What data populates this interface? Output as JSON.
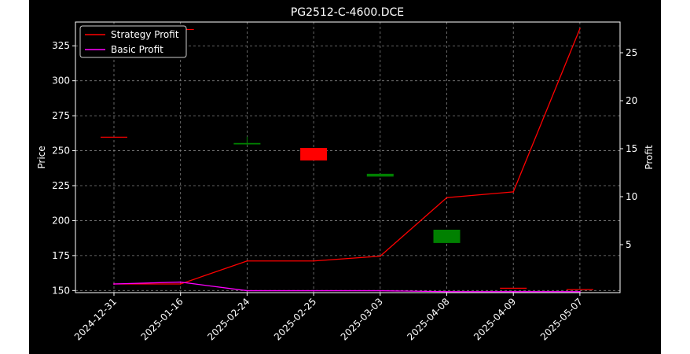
{
  "chart_data": {
    "type": "candlestick-line",
    "title": "PG2512-C-4600.DCE",
    "categories": [
      "2024-12-31",
      "2025-01-16",
      "2025-02-24",
      "2025-02-25",
      "2025-03-03",
      "2025-04-08",
      "2025-04-09",
      "2025-05-07"
    ],
    "price_axis": {
      "label": "Price",
      "ylim": [
        148.5,
        342
      ],
      "ticks": [
        150,
        175,
        200,
        225,
        250,
        275,
        300,
        325
      ],
      "side": "left"
    },
    "profit_axis": {
      "label": "Profit",
      "ylim": [
        0,
        28.2
      ],
      "ticks": [
        5,
        10,
        15,
        20,
        25
      ],
      "side": "right"
    },
    "candles": [
      {
        "date": "2024-12-31",
        "open": 260,
        "close": 260,
        "high": 260,
        "low": 260
      },
      {
        "date": "2025-01-16",
        "open": 337,
        "close": 337,
        "high": 337,
        "low": 337
      },
      {
        "date": "2025-02-24",
        "open": 254.5,
        "close": 255.5,
        "high": 260,
        "low": 254
      },
      {
        "date": "2025-02-25",
        "open": 252,
        "close": 243,
        "high": 252,
        "low": 243
      },
      {
        "date": "2025-03-03",
        "open": 231.5,
        "close": 233.5,
        "high": 233.5,
        "low": 231.5
      },
      {
        "date": "2025-04-08",
        "open": 184,
        "close": 193.5,
        "high": 193.5,
        "low": 184
      },
      {
        "date": "2025-04-09",
        "open": 152,
        "close": 152,
        "high": 152,
        "low": 152
      },
      {
        "date": "2025-05-07",
        "open": 151,
        "close": 151,
        "high": 151,
        "low": 151
      }
    ],
    "candle_colors": {
      "up": "#008000",
      "down": "#ff0000",
      "doji": "#ff0000"
    },
    "series": [
      {
        "name": "Strategy Profit",
        "axis": "profit",
        "color": "#ff0000",
        "values": [
          0.9,
          0.9,
          3.3,
          3.3,
          3.8,
          9.9,
          10.5,
          27.5
        ]
      },
      {
        "name": "Basic Profit",
        "axis": "profit",
        "color": "#ff00ff",
        "values": [
          0.9,
          1.1,
          0.2,
          0.2,
          0.2,
          0.1,
          0.1,
          0.1
        ]
      }
    ],
    "legend_position": "top-left",
    "grid": true,
    "colors": {
      "background": "#000000",
      "axes_face": "#000000",
      "text": "#ffffff",
      "grid": "#808080"
    }
  }
}
